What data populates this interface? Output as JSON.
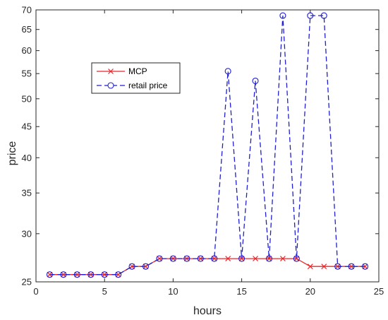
{
  "chart_data": {
    "type": "line",
    "xlabel": "hours",
    "ylabel": "price",
    "xlim": [
      0,
      25
    ],
    "ylim": [
      25,
      70
    ],
    "y_scale": "log",
    "grid": false,
    "legend_position": "upper-left",
    "x_ticks": [
      "0",
      "5",
      "10",
      "15",
      "20",
      "25"
    ],
    "y_ticks": [
      "25",
      "30",
      "35",
      "40",
      "45",
      "50",
      "55",
      "60",
      "65",
      "70"
    ],
    "x": [
      1,
      2,
      3,
      4,
      5,
      6,
      7,
      8,
      9,
      10,
      11,
      12,
      13,
      14,
      15,
      16,
      17,
      18,
      19,
      20,
      21,
      22,
      23,
      24
    ],
    "series": [
      {
        "name": "MCP",
        "color": "#e8282b",
        "marker": "x",
        "line_style": "solid",
        "values": [
          25.7,
          25.7,
          25.7,
          25.7,
          25.7,
          25.7,
          26.5,
          26.5,
          27.3,
          27.3,
          27.3,
          27.3,
          27.3,
          27.3,
          27.3,
          27.3,
          27.3,
          27.3,
          27.3,
          26.5,
          26.5,
          26.5,
          26.5,
          26.5
        ]
      },
      {
        "name": "retail price",
        "color": "#1f1fd1",
        "marker": "o",
        "line_style": "dashed",
        "values": [
          25.7,
          25.7,
          25.7,
          25.7,
          25.7,
          25.7,
          26.5,
          26.5,
          27.3,
          27.3,
          27.3,
          27.3,
          27.3,
          55.5,
          27.3,
          53.5,
          27.3,
          68.5,
          27.3,
          68.5,
          68.5,
          26.5,
          26.5,
          26.5
        ]
      }
    ]
  }
}
